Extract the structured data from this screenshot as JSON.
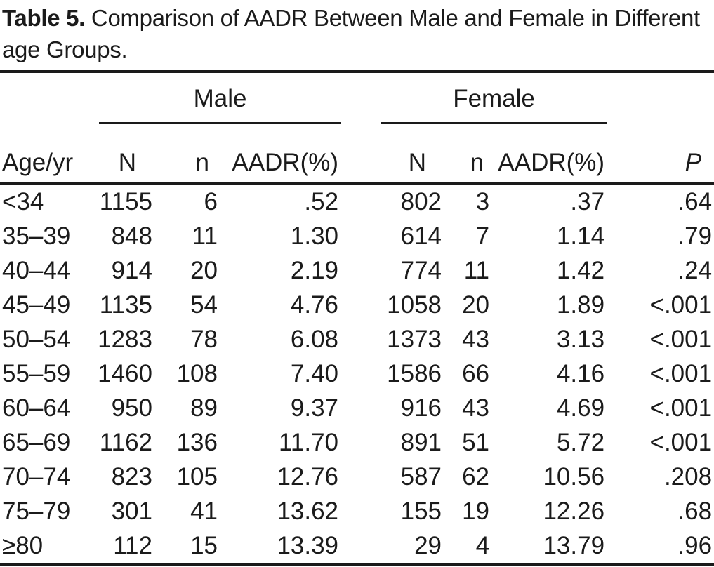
{
  "title": {
    "label": "Table 5.",
    "text": "Comparison of AADR Between Male and Female in Different age Groups."
  },
  "table": {
    "age_header": "Age/yr",
    "groups": [
      "Male",
      "Female"
    ],
    "sub_headers": [
      "N",
      "n",
      "AADR(%)",
      "N",
      "n",
      "AADR(%)"
    ],
    "p_header": "P",
    "rows": [
      [
        "<34",
        "1155",
        "6",
        ".52",
        "802",
        "3",
        ".37",
        ".64"
      ],
      [
        "35–39",
        "848",
        "11",
        "1.30",
        "614",
        "7",
        "1.14",
        ".79"
      ],
      [
        "40–44",
        "914",
        "20",
        "2.19",
        "774",
        "11",
        "1.42",
        ".24"
      ],
      [
        "45–49",
        "1135",
        "54",
        "4.76",
        "1058",
        "20",
        "1.89",
        "<.001"
      ],
      [
        "50–54",
        "1283",
        "78",
        "6.08",
        "1373",
        "43",
        "3.13",
        "<.001"
      ],
      [
        "55–59",
        "1460",
        "108",
        "7.40",
        "1586",
        "66",
        "4.16",
        "<.001"
      ],
      [
        "60–64",
        "950",
        "89",
        "9.37",
        "916",
        "43",
        "4.69",
        "<.001"
      ],
      [
        "65–69",
        "1162",
        "136",
        "11.70",
        "891",
        "51",
        "5.72",
        "<.001"
      ],
      [
        "70–74",
        "823",
        "105",
        "12.76",
        "587",
        "62",
        "10.56",
        ".208"
      ],
      [
        "75–79",
        "301",
        "41",
        "13.62",
        "155",
        "19",
        "12.26",
        ".68"
      ],
      [
        "≥80",
        "112",
        "15",
        "13.39",
        "29",
        "4",
        "13.79",
        ".96"
      ]
    ]
  },
  "text_color": "#1b1b1b",
  "rule_color": "#1a1a1a"
}
